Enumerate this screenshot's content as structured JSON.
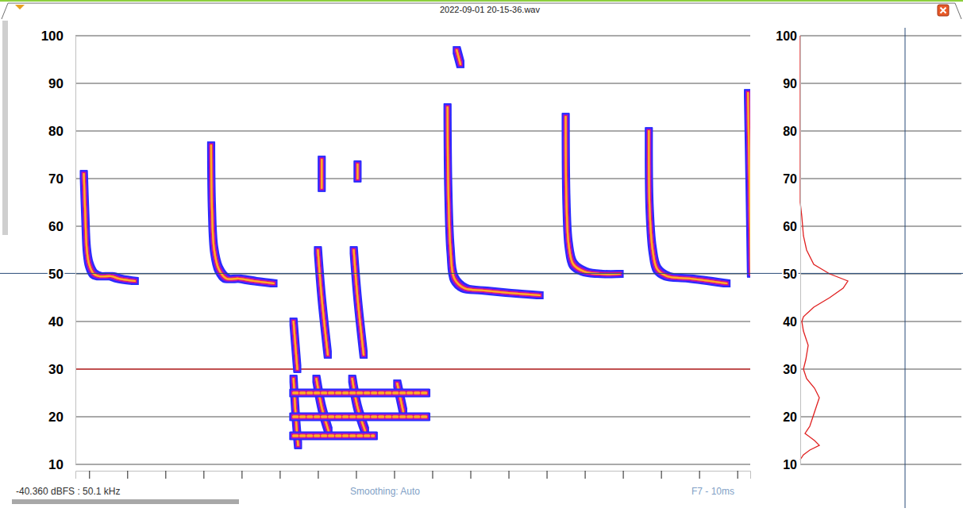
{
  "window": {
    "title": "2022-09-01 20-15-36.wav",
    "status": {
      "readout": "-40.360 dBFS : 50.1 kHz",
      "smoothing": "Smoothing: Auto",
      "resolution": "F7 - 10ms"
    }
  },
  "chart_data": [
    {
      "type": "line",
      "xlim": [
        0,
        88.5
      ],
      "ylim": [
        10,
        100
      ],
      "xticks": [
        1.8,
        6.8,
        11.8,
        16.8,
        21.8,
        26.8,
        31.8,
        36.8,
        41.8,
        46.8,
        51.8,
        56.8,
        61.8,
        66.8,
        71.8,
        76.8,
        81.8,
        86.8
      ],
      "yticks": [
        10,
        20,
        30,
        40,
        50,
        60,
        70,
        80,
        90,
        100
      ],
      "grid": true,
      "tick_labels": "y",
      "cursor_frequency": 50.1,
      "reference_frequency": 30,
      "series": [
        {
          "x": [
            1.1,
            1.3,
            1.5,
            1.8,
            2.4,
            3.1,
            4.7,
            5.7,
            7.8
          ],
          "values": [
            71,
            62,
            55,
            52,
            50,
            49.5,
            49.5,
            49,
            48.5
          ],
          "line_style": "solid"
        },
        {
          "x": [
            17.8,
            17.9,
            18.2,
            18.8,
            19.8,
            21.4,
            23.4,
            26.0
          ],
          "values": [
            77,
            64,
            55,
            51,
            49,
            49,
            48.5,
            48
          ],
          "line_style": "solid"
        },
        {
          "x": [
            48.8,
            48.9,
            49.2,
            49.7,
            51.0,
            53.6,
            56.8,
            60.9
          ],
          "values": [
            85,
            68,
            55,
            49,
            47,
            46.5,
            46,
            45.5
          ],
          "line_style": "solid"
        },
        {
          "x": [
            64.3,
            64.4,
            64.7,
            65.3,
            66.7,
            68.8,
            71.4
          ],
          "values": [
            83,
            65,
            56,
            52,
            50.5,
            50,
            50
          ],
          "line_style": "solid"
        },
        {
          "x": [
            75.2,
            75.3,
            75.7,
            76.3,
            77.6,
            80.7,
            85.4
          ],
          "values": [
            80,
            64,
            55,
            51,
            49.5,
            49,
            48
          ],
          "line_style": "solid"
        },
        {
          "x": [
            88.2,
            88.4,
            88.6
          ],
          "values": [
            88,
            70,
            50
          ],
          "line_style": "solid"
        },
        {
          "x": [
            28.6,
            28.9,
            29.1
          ],
          "values": [
            40,
            34,
            30
          ],
          "line_style": "solid"
        },
        {
          "x": [
            28.6,
            28.9,
            29.2
          ],
          "values": [
            28,
            20,
            14
          ],
          "line_style": "solid"
        },
        {
          "x": [
            31.8,
            32.3,
            33.1
          ],
          "values": [
            55,
            45,
            33
          ],
          "line_style": "solid"
        },
        {
          "x": [
            31.6,
            32.3,
            33.2
          ],
          "values": [
            28,
            22,
            17
          ],
          "line_style": "solid"
        },
        {
          "x": [
            36.5,
            37.0,
            37.8
          ],
          "values": [
            55,
            45,
            33
          ],
          "line_style": "solid"
        },
        {
          "x": [
            36.3,
            37.0,
            38.0
          ],
          "values": [
            28,
            22,
            17
          ],
          "line_style": "solid"
        },
        {
          "x": [
            42.2,
            43.0
          ],
          "values": [
            27,
            21
          ],
          "line_style": "solid"
        },
        {
          "x": [
            28.6,
            46.4
          ],
          "values": [
            25,
            25
          ],
          "line_style": "dashed"
        },
        {
          "x": [
            28.6,
            46.4
          ],
          "values": [
            20,
            20
          ],
          "line_style": "dashed"
        },
        {
          "x": [
            28.6,
            39.1
          ],
          "values": [
            16,
            16
          ],
          "line_style": "dashed"
        },
        {
          "x": [
            32.3,
            32.3
          ],
          "values": [
            74,
            68
          ],
          "line_style": "solid"
        },
        {
          "x": [
            37.0,
            37.0
          ],
          "values": [
            73,
            70
          ],
          "line_style": "solid"
        },
        {
          "x": [
            50.0,
            50.5
          ],
          "values": [
            97,
            94
          ],
          "line_style": "solid"
        }
      ]
    },
    {
      "type": "line",
      "xlim": [
        0,
        100
      ],
      "ylim": [
        10,
        100
      ],
      "yticks": [
        10,
        20,
        30,
        40,
        50,
        60,
        70,
        80,
        90,
        100
      ],
      "grid": true,
      "tick_labels": "y",
      "cursor_level": 66,
      "series": [
        {
          "color": "#e02020",
          "x": [
            0,
            0,
            1,
            2,
            4,
            8.5,
            18.5,
            30,
            27,
            18.5,
            8.5,
            2,
            1,
            2,
            5,
            3.5,
            2,
            4,
            9,
            12,
            10,
            8,
            6,
            3,
            9,
            12,
            6,
            2,
            0
          ],
          "values": [
            100,
            65,
            62,
            58,
            55,
            52,
            50,
            48.5,
            47,
            45,
            43,
            41,
            40,
            38,
            35,
            32,
            30,
            28,
            26,
            24,
            22,
            20,
            18,
            16.5,
            15,
            14,
            13,
            12,
            11
          ]
        }
      ]
    }
  ]
}
